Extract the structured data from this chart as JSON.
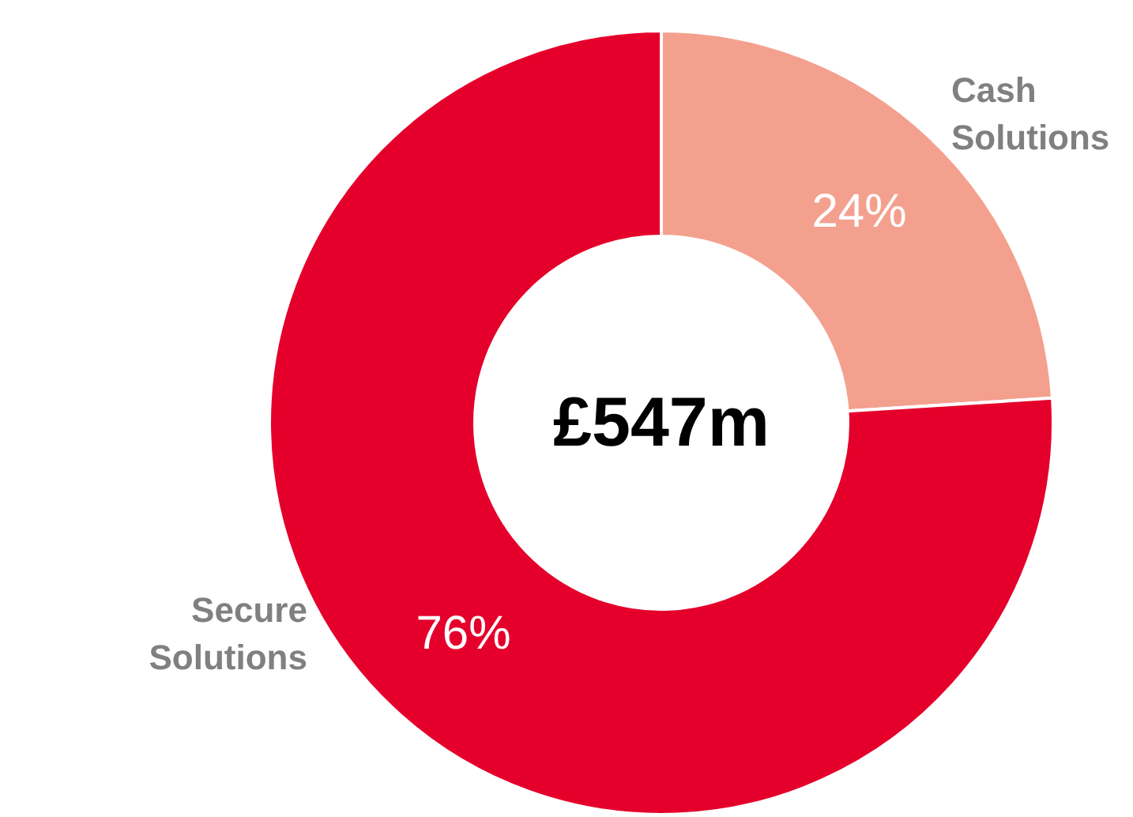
{
  "chart_data": {
    "type": "donut",
    "categories": [
      "Cash Solutions",
      "Secure Solutions"
    ],
    "values": [
      24,
      76
    ],
    "colors": [
      "#f4a08f",
      "#e4002b"
    ],
    "value_labels": [
      "24%",
      "76%"
    ],
    "annotations": [
      "£547m"
    ]
  }
}
